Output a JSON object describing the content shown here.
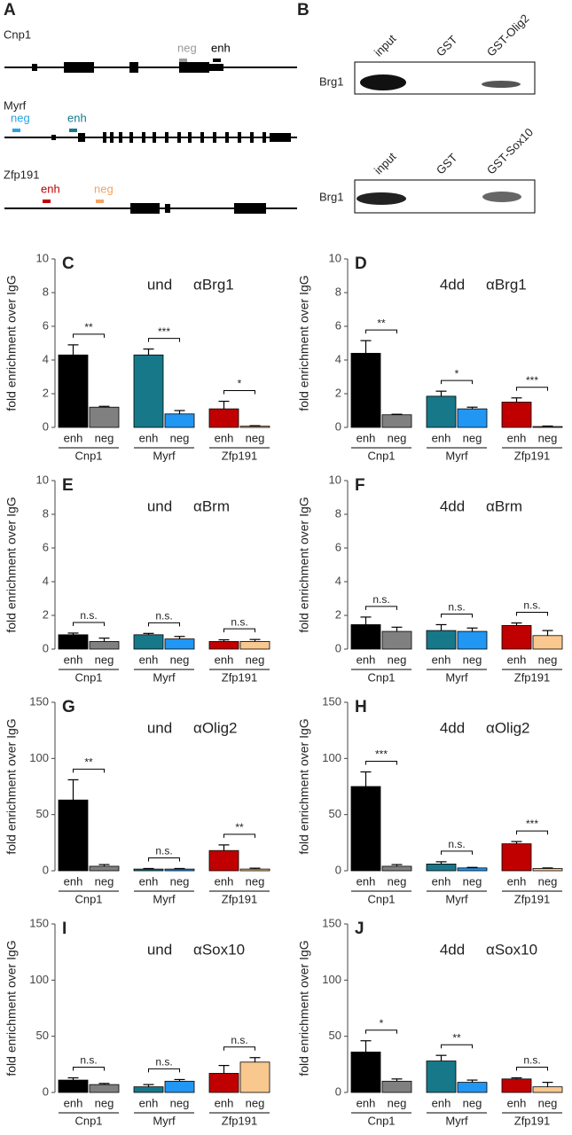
{
  "panel_a": {
    "label": "A",
    "genes": [
      {
        "name": "Cnp1",
        "probes": [
          {
            "label": "neg",
            "color": "#999999"
          },
          {
            "label": "enh",
            "color": "#000000"
          }
        ]
      },
      {
        "name": "Myrf",
        "probes": [
          {
            "label": "neg",
            "color": "#29a3e0"
          },
          {
            "label": "enh",
            "color": "#17788a"
          }
        ]
      },
      {
        "name": "Zfp191",
        "probes": [
          {
            "label": "enh",
            "color": "#c00000"
          },
          {
            "label": "neg",
            "color": "#f4a460"
          }
        ]
      }
    ]
  },
  "panel_b": {
    "label": "B",
    "blots": [
      {
        "lanes": [
          "input",
          "GST",
          "GST-Olig2"
        ],
        "protein": "Brg1"
      },
      {
        "lanes": [
          "input",
          "GST",
          "GST-Sox10"
        ],
        "protein": "Brg1"
      }
    ]
  },
  "chart_data": [
    {
      "type": "bar",
      "panel": "C",
      "condition": "und",
      "antibody": "αBrg1",
      "ylabel": "fold enrichment over IgG",
      "ylim": [
        0,
        10
      ],
      "yticks": [
        0,
        2,
        4,
        6,
        8,
        10
      ],
      "categories": [
        "enh",
        "neg",
        "enh",
        "neg",
        "enh",
        "neg"
      ],
      "groups": [
        "Cnp1",
        "Myrf",
        "Zfp191"
      ],
      "values": [
        4.3,
        1.2,
        4.3,
        0.8,
        1.1,
        0.07
      ],
      "errors": [
        0.6,
        0.05,
        0.35,
        0.2,
        0.45,
        0.03
      ],
      "colors": [
        "#000000",
        "#808080",
        "#17788a",
        "#2196f3",
        "#c00000",
        "#f9c88e"
      ],
      "significance": [
        "**",
        "***",
        "*"
      ]
    },
    {
      "type": "bar",
      "panel": "D",
      "condition": "4dd",
      "antibody": "αBrg1",
      "ylabel": "fold enrichment over IgG",
      "ylim": [
        0,
        10
      ],
      "yticks": [
        0,
        2,
        4,
        6,
        8,
        10
      ],
      "categories": [
        "enh",
        "neg",
        "enh",
        "neg",
        "enh",
        "neg"
      ],
      "groups": [
        "Cnp1",
        "Myrf",
        "Zfp191"
      ],
      "values": [
        4.4,
        0.75,
        1.85,
        1.1,
        1.5,
        0.05
      ],
      "errors": [
        0.75,
        0.03,
        0.3,
        0.1,
        0.25,
        0.03
      ],
      "colors": [
        "#000000",
        "#808080",
        "#17788a",
        "#2196f3",
        "#c00000",
        "#f9c88e"
      ],
      "significance": [
        "**",
        "*",
        "***"
      ]
    },
    {
      "type": "bar",
      "panel": "E",
      "condition": "und",
      "antibody": "αBrm",
      "ylabel": "fold enrichment over IgG",
      "ylim": [
        0,
        10
      ],
      "yticks": [
        0,
        2,
        4,
        6,
        8,
        10
      ],
      "categories": [
        "enh",
        "neg",
        "enh",
        "neg",
        "enh",
        "neg"
      ],
      "groups": [
        "Cnp1",
        "Myrf",
        "Zfp191"
      ],
      "values": [
        0.85,
        0.45,
        0.85,
        0.6,
        0.45,
        0.45
      ],
      "errors": [
        0.1,
        0.2,
        0.08,
        0.15,
        0.1,
        0.12
      ],
      "colors": [
        "#000000",
        "#808080",
        "#17788a",
        "#2196f3",
        "#c00000",
        "#f9c88e"
      ],
      "significance": [
        "n.s.",
        "n.s.",
        "n.s."
      ]
    },
    {
      "type": "bar",
      "panel": "F",
      "condition": "4dd",
      "antibody": "αBrm",
      "ylabel": "fold enrichment over IgG",
      "ylim": [
        0,
        10
      ],
      "yticks": [
        0,
        2,
        4,
        6,
        8,
        10
      ],
      "categories": [
        "enh",
        "neg",
        "enh",
        "neg",
        "enh",
        "neg"
      ],
      "groups": [
        "Cnp1",
        "Myrf",
        "Zfp191"
      ],
      "values": [
        1.45,
        1.05,
        1.1,
        1.05,
        1.4,
        0.8
      ],
      "errors": [
        0.45,
        0.25,
        0.35,
        0.2,
        0.15,
        0.3
      ],
      "colors": [
        "#000000",
        "#808080",
        "#17788a",
        "#2196f3",
        "#c00000",
        "#f9c88e"
      ],
      "significance": [
        "n.s.",
        "n.s.",
        "n.s."
      ]
    },
    {
      "type": "bar",
      "panel": "G",
      "condition": "und",
      "antibody": "αOlig2",
      "ylabel": "fold enrichment over IgG",
      "ylim": [
        0,
        150
      ],
      "yticks": [
        0,
        50,
        100,
        150
      ],
      "categories": [
        "enh",
        "neg",
        "enh",
        "neg",
        "enh",
        "neg"
      ],
      "groups": [
        "Cnp1",
        "Myrf",
        "Zfp191"
      ],
      "values": [
        63,
        4,
        1.5,
        1.5,
        18,
        1.5
      ],
      "errors": [
        18,
        1.5,
        0.5,
        0.5,
        5,
        0.8
      ],
      "colors": [
        "#000000",
        "#808080",
        "#17788a",
        "#2196f3",
        "#c00000",
        "#f9c88e"
      ],
      "significance": [
        "**",
        "n.s.",
        "**"
      ]
    },
    {
      "type": "bar",
      "panel": "H",
      "condition": "4dd",
      "antibody": "αOlig2",
      "ylabel": "fold enrichment over IgG",
      "ylim": [
        0,
        150
      ],
      "yticks": [
        0,
        50,
        100,
        150
      ],
      "categories": [
        "enh",
        "neg",
        "enh",
        "neg",
        "enh",
        "neg"
      ],
      "groups": [
        "Cnp1",
        "Myrf",
        "Zfp191"
      ],
      "values": [
        75,
        4,
        6,
        2.5,
        24,
        2
      ],
      "errors": [
        13,
        1.5,
        2,
        0.5,
        2,
        0.5
      ],
      "colors": [
        "#000000",
        "#808080",
        "#17788a",
        "#2196f3",
        "#c00000",
        "#f9c88e"
      ],
      "significance": [
        "***",
        "n.s.",
        "***"
      ]
    },
    {
      "type": "bar",
      "panel": "I",
      "condition": "und",
      "antibody": "αSox10",
      "ylabel": "fold enrichment over IgG",
      "ylim": [
        0,
        150
      ],
      "yticks": [
        0,
        50,
        100,
        150
      ],
      "categories": [
        "enh",
        "neg",
        "enh",
        "neg",
        "enh",
        "neg"
      ],
      "groups": [
        "Cnp1",
        "Myrf",
        "Zfp191"
      ],
      "values": [
        11,
        7,
        5,
        10,
        17,
        27
      ],
      "errors": [
        2,
        1,
        2,
        1.5,
        7,
        4
      ],
      "colors": [
        "#000000",
        "#808080",
        "#17788a",
        "#2196f3",
        "#c00000",
        "#f9c88e"
      ],
      "significance": [
        "n.s.",
        "n.s.",
        "n.s."
      ]
    },
    {
      "type": "bar",
      "panel": "J",
      "condition": "4dd",
      "antibody": "αSox10",
      "ylabel": "fold enrichment over IgG",
      "ylim": [
        0,
        150
      ],
      "yticks": [
        0,
        50,
        100,
        150
      ],
      "categories": [
        "enh",
        "neg",
        "enh",
        "neg",
        "enh",
        "neg"
      ],
      "groups": [
        "Cnp1",
        "Myrf",
        "Zfp191"
      ],
      "values": [
        36,
        10,
        28,
        9,
        12,
        5
      ],
      "errors": [
        10,
        2,
        5,
        2,
        1,
        4
      ],
      "colors": [
        "#000000",
        "#808080",
        "#17788a",
        "#2196f3",
        "#c00000",
        "#f9c88e"
      ],
      "significance": [
        "*",
        "**",
        "n.s."
      ]
    }
  ]
}
